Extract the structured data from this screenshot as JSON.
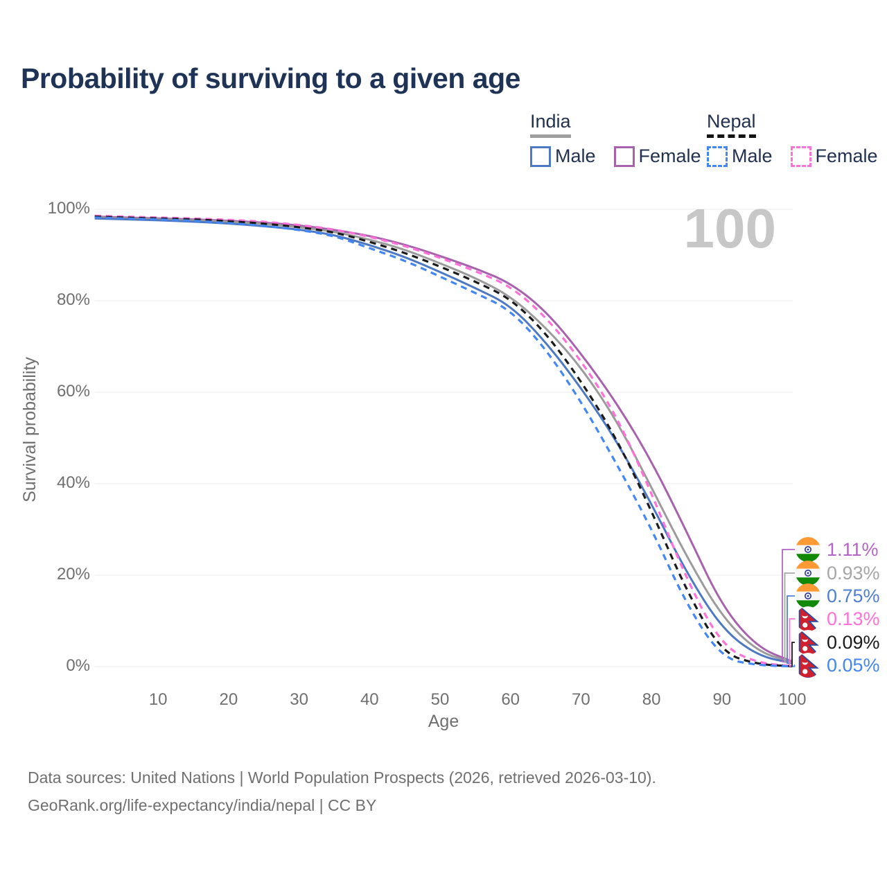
{
  "title": "Probability of surviving to a given age",
  "watermark_age": "100",
  "legend": {
    "groups": [
      {
        "id": "india",
        "label": "India",
        "line_style": "solid",
        "items": [
          {
            "label": "Male",
            "color": "#4c78c4"
          },
          {
            "label": "Female",
            "color": "#a761ad"
          }
        ]
      },
      {
        "id": "nepal",
        "label": "Nepal",
        "line_style": "dashed",
        "items": [
          {
            "label": "Male",
            "color": "#4287f5"
          },
          {
            "label": "Female",
            "color": "#ff70d9"
          }
        ]
      }
    ]
  },
  "chart_data": {
    "type": "line",
    "title": "Probability of surviving to a given age",
    "xlabel": "Age",
    "ylabel": "Survival probability",
    "xlim": [
      1,
      100
    ],
    "ylim": [
      0,
      100
    ],
    "grid": "horizontal",
    "legend_position": "top-right",
    "x_ticks": [
      10,
      20,
      30,
      40,
      50,
      60,
      70,
      80,
      90,
      100
    ],
    "y_ticks": [
      0,
      20,
      40,
      60,
      80,
      100
    ],
    "y_tick_suffix": "%",
    "x": [
      1,
      5,
      10,
      15,
      20,
      25,
      30,
      35,
      40,
      45,
      50,
      55,
      60,
      65,
      70,
      75,
      80,
      85,
      90,
      95,
      100
    ],
    "series": [
      {
        "name": "India Female",
        "color": "#a761ad",
        "dashed": false,
        "flag": "india",
        "end_label": "1.11%",
        "label_color": "#b464c6",
        "values": [
          98.4,
          98.2,
          98.0,
          97.8,
          97.5,
          97.1,
          96.5,
          95.5,
          94.2,
          92.3,
          89.8,
          87.1,
          83.9,
          77.8,
          68.5,
          57.8,
          45.0,
          29.5,
          13.2,
          4.2,
          1.11
        ]
      },
      {
        "name": "India Both sexes",
        "color": "#9b9b9b",
        "dashed": false,
        "flag": "india",
        "end_label": "0.93%",
        "label_color": "#a6a6a6",
        "values": [
          98.2,
          98.0,
          97.8,
          97.6,
          97.3,
          96.8,
          96.1,
          95.1,
          93.4,
          91.2,
          88.2,
          85.0,
          81.0,
          74.2,
          65.5,
          54.0,
          39.2,
          24.0,
          10.9,
          3.3,
          0.93
        ]
      },
      {
        "name": "India Male",
        "color": "#4c78c4",
        "dashed": false,
        "flag": "india",
        "end_label": "0.75%",
        "label_color": "#4e7fd2",
        "values": [
          98.0,
          97.8,
          97.6,
          97.3,
          96.9,
          96.3,
          95.6,
          94.4,
          92.2,
          89.6,
          86.3,
          82.8,
          79.0,
          71.0,
          61.0,
          49.5,
          35.6,
          20.5,
          8.3,
          2.4,
          0.75
        ]
      },
      {
        "name": "Nepal Female",
        "color": "#ff70d9",
        "dashed": true,
        "flag": "nepal",
        "end_label": "0.13%",
        "label_color": "#ff70d8",
        "values": [
          98.6,
          98.4,
          98.2,
          98.0,
          97.7,
          97.3,
          96.6,
          95.6,
          94.0,
          92.0,
          89.4,
          86.5,
          83.2,
          76.5,
          67.0,
          55.0,
          38.0,
          19.0,
          4.5,
          0.8,
          0.13
        ]
      },
      {
        "name": "Nepal Both sexes",
        "color": "#1b1b1b",
        "dashed": true,
        "flag": "nepal",
        "end_label": "0.09%",
        "label_color": "#1a1a1a",
        "values": [
          98.4,
          98.2,
          98.0,
          97.8,
          97.4,
          96.9,
          96.1,
          95.0,
          92.9,
          90.5,
          87.5,
          84.2,
          80.5,
          73.0,
          62.5,
          50.0,
          34.1,
          16.5,
          3.0,
          0.5,
          0.09
        ]
      },
      {
        "name": "Nepal Male",
        "color": "#4287f5",
        "dashed": true,
        "flag": "nepal",
        "end_label": "0.05%",
        "label_color": "#4286f5",
        "values": [
          98.2,
          98.0,
          97.8,
          97.5,
          97.0,
          96.4,
          95.5,
          94.2,
          91.5,
          88.8,
          85.3,
          81.7,
          78.0,
          69.5,
          58.0,
          44.5,
          30.2,
          13.5,
          1.8,
          0.3,
          0.05
        ]
      }
    ]
  },
  "footer": {
    "line1": "Data sources: United Nations | World Population Prospects (2026, retrieved 2026-03-10).",
    "line2": "GeoRank.org/life-expectancy/india/nepal | CC BY"
  }
}
